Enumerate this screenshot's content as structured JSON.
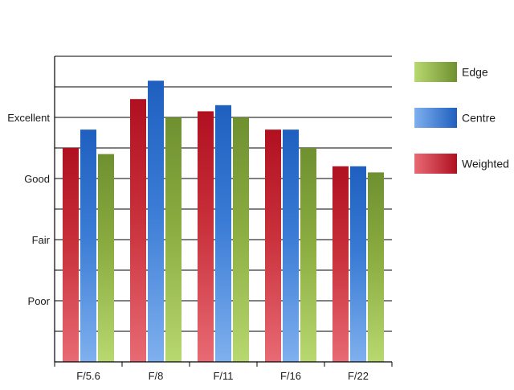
{
  "chart_data": {
    "type": "bar",
    "categories": [
      "F/5.6",
      "F/8",
      "F/11",
      "F/16",
      "F/22"
    ],
    "series": [
      {
        "name": "Weighted",
        "values": [
          3.5,
          4.3,
          4.1,
          3.8,
          3.2
        ],
        "colors": {
          "top": "#b01020",
          "mid": "#c8303a",
          "bottom": "#e86a74"
        }
      },
      {
        "name": "Centre",
        "values": [
          3.8,
          4.6,
          4.2,
          3.8,
          3.2
        ],
        "colors": {
          "top": "#1f5fbf",
          "mid": "#3a7bd5",
          "bottom": "#7fb0ee"
        }
      },
      {
        "name": "Edge",
        "values": [
          3.4,
          4.0,
          4.0,
          3.5,
          3.1
        ],
        "colors": {
          "top": "#6f9030",
          "mid": "#8aac40",
          "bottom": "#b8d870"
        }
      }
    ],
    "y_ticks": [
      {
        "value": 1,
        "label": "Poor"
      },
      {
        "value": 2,
        "label": "Fair"
      },
      {
        "value": 3,
        "label": "Good"
      },
      {
        "value": 4,
        "label": "Excellent"
      }
    ],
    "ylim": [
      0,
      5
    ],
    "grid": true,
    "legend": {
      "position": "right",
      "order": [
        "Edge",
        "Centre",
        "Weighted"
      ]
    },
    "title": "",
    "xlabel": "",
    "ylabel": ""
  }
}
